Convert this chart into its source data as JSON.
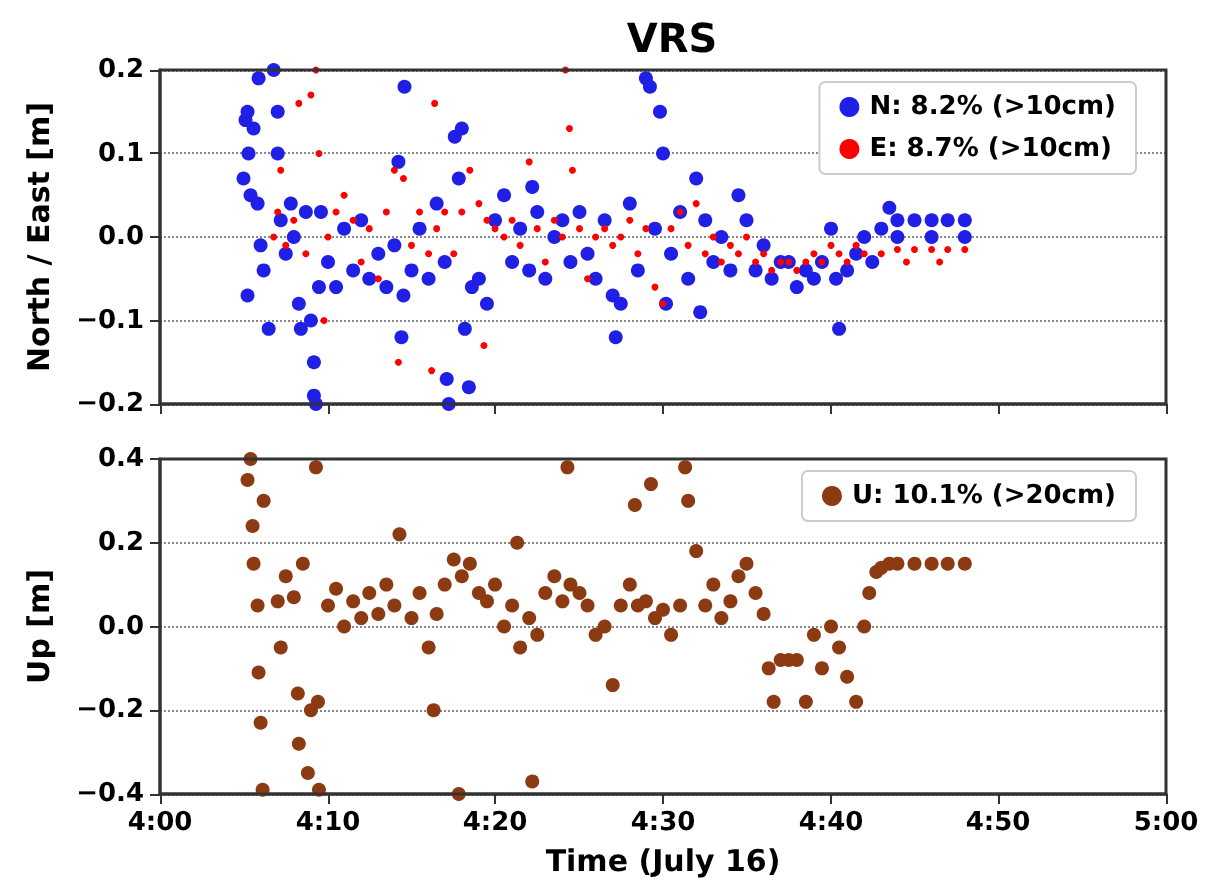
{
  "chart_data": [
    {
      "type": "scatter",
      "title": "VRS",
      "ylabel": "North / East [m]",
      "xlim": [
        4,
        5
      ],
      "xticks": [
        {
          "value": 4,
          "label": null
        },
        {
          "value": 4.167,
          "label": null
        },
        {
          "value": 4.333,
          "label": null
        },
        {
          "value": 4.5,
          "label": null
        },
        {
          "value": 4.667,
          "label": null
        },
        {
          "value": 4.833,
          "label": null
        },
        {
          "value": 5,
          "label": null
        }
      ],
      "ylim": [
        -0.2,
        0.2
      ],
      "yticks": [
        {
          "value": -0.2,
          "label": "−0.2"
        },
        {
          "value": -0.1,
          "label": "−0.1"
        },
        {
          "value": 0,
          "label": "0.0"
        },
        0.1,
        0.2
      ],
      "tick_labels": "y",
      "grid": "y",
      "legend": "top right",
      "marker": "circle",
      "series": [
        {
          "name": "N: 8.2% (>10cm)",
          "color": "#1f1fe6",
          "x": [
            4.083,
            4.085,
            4.087,
            4.088,
            4.09,
            4.087,
            4.093,
            4.097,
            4.098,
            4.1,
            4.103,
            4.108,
            4.113,
            4.117,
            4.117,
            4.12,
            4.125,
            4.13,
            4.133,
            4.138,
            4.14,
            4.145,
            4.15,
            4.153,
            4.153,
            4.155,
            4.158,
            4.16,
            4.167,
            4.175,
            4.183,
            4.192,
            4.2,
            4.208,
            4.217,
            4.225,
            4.233,
            4.237,
            4.24,
            4.242,
            4.243,
            4.25,
            4.258,
            4.267,
            4.275,
            4.283,
            4.285,
            4.287,
            4.293,
            4.297,
            4.3,
            4.303,
            4.307,
            4.31,
            4.317,
            4.325,
            4.333,
            4.342,
            4.35,
            4.358,
            4.367,
            4.37,
            4.375,
            4.383,
            4.392,
            4.4,
            4.408,
            4.417,
            4.425,
            4.433,
            4.442,
            4.45,
            4.453,
            4.458,
            4.467,
            4.475,
            4.483,
            4.487,
            4.492,
            4.497,
            4.5,
            4.503,
            4.508,
            4.517,
            4.525,
            4.533,
            4.537,
            4.542,
            4.55,
            4.558,
            4.567,
            4.575,
            4.583,
            4.592,
            4.6,
            4.608,
            4.617,
            4.625,
            4.633,
            4.642,
            4.65,
            4.658,
            4.667,
            4.672,
            4.675,
            4.683,
            4.692,
            4.7,
            4.708,
            4.717,
            4.725,
            4.733,
            4.75,
            4.767,
            4.783,
            4.8,
            4.733,
            4.767,
            4.8
          ],
          "values": [
            0.07,
            0.14,
            0.15,
            0.1,
            0.05,
            -0.07,
            0.13,
            0.04,
            0.19,
            -0.01,
            -0.04,
            -0.11,
            0.2,
            0.15,
            0.1,
            0.02,
            -0.02,
            0.04,
            0,
            -0.08,
            -0.11,
            0.03,
            -0.1,
            -0.15,
            -0.19,
            -0.2,
            -0.06,
            0.03,
            -0.03,
            -0.06,
            0.01,
            -0.04,
            0.02,
            -0.05,
            -0.02,
            -0.06,
            -0.01,
            0.09,
            -0.12,
            -0.07,
            0.18,
            -0.04,
            0.01,
            -0.05,
            0.04,
            -0.03,
            -0.17,
            -0.2,
            0.12,
            0.07,
            0.13,
            -0.11,
            -0.18,
            -0.06,
            -0.05,
            -0.08,
            0.02,
            0.05,
            -0.03,
            0.01,
            -0.04,
            0.06,
            0.03,
            -0.05,
            0,
            0.02,
            -0.03,
            0.03,
            -0.02,
            -0.05,
            0.02,
            -0.07,
            -0.12,
            -0.08,
            0.04,
            -0.04,
            0.19,
            0.18,
            0.01,
            0.15,
            0.1,
            -0.08,
            -0.02,
            0.03,
            -0.05,
            0.07,
            -0.09,
            0.02,
            -0.03,
            0,
            -0.04,
            0.05,
            0.02,
            -0.04,
            -0.01,
            -0.05,
            -0.03,
            -0.03,
            -0.06,
            -0.04,
            -0.05,
            -0.03,
            0.01,
            -0.05,
            -0.11,
            -0.04,
            -0.02,
            0,
            -0.03,
            0.01,
            0.035,
            0.02,
            0.02,
            0.02,
            0.02,
            0,
            0,
            0,
            0.02
          ]
        },
        {
          "name": "E: 8.7% (>10cm)",
          "color": "#ff0000",
          "x": [
            4.113,
            4.117,
            4.12,
            4.125,
            4.133,
            4.138,
            4.145,
            4.15,
            4.155,
            4.158,
            4.163,
            4.167,
            4.175,
            4.183,
            4.192,
            4.2,
            4.208,
            4.217,
            4.225,
            4.233,
            4.237,
            4.242,
            4.25,
            4.258,
            4.267,
            4.27,
            4.273,
            4.275,
            4.283,
            4.292,
            4.3,
            4.308,
            4.317,
            4.322,
            4.325,
            4.333,
            4.342,
            4.35,
            4.358,
            4.367,
            4.375,
            4.383,
            4.392,
            4.4,
            4.403,
            4.407,
            4.41,
            4.417,
            4.425,
            4.433,
            4.442,
            4.45,
            4.458,
            4.467,
            4.475,
            4.483,
            4.492,
            4.5,
            4.508,
            4.517,
            4.525,
            4.533,
            4.542,
            4.55,
            4.558,
            4.567,
            4.575,
            4.583,
            4.592,
            4.6,
            4.608,
            4.617,
            4.625,
            4.633,
            4.642,
            4.65,
            4.658,
            4.667,
            4.675,
            4.683,
            4.692,
            4.7,
            4.717,
            4.733,
            4.75,
            4.767,
            4.783,
            4.742,
            4.775,
            4.8
          ],
          "values": [
            0,
            0.03,
            0.08,
            -0.01,
            0.02,
            0.16,
            -0.02,
            0.17,
            0.2,
            0.1,
            -0.1,
            0,
            0.03,
            0.05,
            0.02,
            -0.03,
            0.01,
            -0.05,
            0.03,
            0.08,
            -0.15,
            0.07,
            -0.01,
            0.03,
            -0.02,
            -0.16,
            0.16,
            0.01,
            0.03,
            -0.02,
            0.03,
            0.08,
            0.04,
            -0.13,
            0.02,
            0.01,
            0,
            0.02,
            -0.01,
            0.09,
            0.01,
            -0.03,
            0.02,
            0,
            0.2,
            0.13,
            0.08,
            0.01,
            -0.05,
            0,
            0.01,
            -0.01,
            0,
            0.02,
            -0.02,
            0.01,
            -0.06,
            -0.08,
            0.01,
            0.03,
            -0.01,
            0.04,
            -0.02,
            0,
            -0.03,
            -0.01,
            -0.02,
            0,
            -0.03,
            -0.02,
            -0.04,
            -0.03,
            -0.03,
            -0.04,
            -0.03,
            -0.02,
            -0.03,
            -0.01,
            -0.02,
            -0.03,
            -0.01,
            -0.02,
            -0.02,
            -0.015,
            -0.015,
            -0.015,
            -0.015,
            -0.03,
            -0.03,
            -0.015
          ]
        }
      ]
    },
    {
      "type": "scatter",
      "xlabel": "Time (July 16)",
      "ylabel": "Up [m]",
      "xlim": [
        4,
        5
      ],
      "xticks": [
        {
          "value": 4,
          "label": "4:00"
        },
        {
          "value": 4.167,
          "label": "4:10"
        },
        {
          "value": 4.333,
          "label": "4:20"
        },
        {
          "value": 4.5,
          "label": "4:30"
        },
        {
          "value": 4.667,
          "label": "4:40"
        },
        {
          "value": 4.833,
          "label": "4:50"
        },
        {
          "value": 5,
          "label": "5:00"
        }
      ],
      "ylim": [
        -0.4,
        0.4
      ],
      "yticks": [
        {
          "value": -0.4,
          "label": "−0.4"
        },
        {
          "value": -0.2,
          "label": "−0.2"
        },
        {
          "value": 0,
          "label": "0.0"
        },
        0.2,
        0.4
      ],
      "grid": "y",
      "legend": "top right",
      "marker": "circle",
      "series": [
        {
          "name": "U: 10.1% (>20cm)",
          "color": "#8b3a12",
          "x": [
            4.087,
            4.09,
            4.092,
            4.093,
            4.097,
            4.098,
            4.1,
            4.102,
            4.103,
            4.117,
            4.12,
            4.125,
            4.133,
            4.137,
            4.138,
            4.142,
            4.147,
            4.15,
            4.155,
            4.157,
            4.158,
            4.167,
            4.175,
            4.183,
            4.192,
            4.2,
            4.208,
            4.217,
            4.225,
            4.233,
            4.238,
            4.25,
            4.258,
            4.267,
            4.272,
            4.275,
            4.283,
            4.292,
            4.297,
            4.3,
            4.308,
            4.317,
            4.325,
            4.333,
            4.342,
            4.35,
            4.355,
            4.358,
            4.367,
            4.37,
            4.375,
            4.383,
            4.392,
            4.4,
            4.405,
            4.408,
            4.417,
            4.425,
            4.433,
            4.442,
            4.45,
            4.458,
            4.467,
            4.472,
            4.475,
            4.483,
            4.488,
            4.492,
            4.5,
            4.508,
            4.517,
            4.522,
            4.525,
            4.533,
            4.542,
            4.55,
            4.558,
            4.567,
            4.575,
            4.583,
            4.592,
            4.6,
            4.605,
            4.61,
            4.617,
            4.625,
            4.633,
            4.642,
            4.65,
            4.658,
            4.667,
            4.675,
            4.683,
            4.692,
            4.7,
            4.705,
            4.712,
            4.717,
            4.725,
            4.733,
            4.75,
            4.767,
            4.783,
            4.8
          ],
          "values": [
            0.35,
            0.4,
            0.24,
            0.15,
            0.05,
            -0.11,
            -0.23,
            -0.39,
            0.3,
            0.06,
            -0.05,
            0.12,
            0.07,
            -0.16,
            -0.28,
            0.15,
            -0.35,
            -0.2,
            0.38,
            -0.18,
            -0.39,
            0.05,
            0.09,
            0,
            0.06,
            0.02,
            0.08,
            0.03,
            0.1,
            0.05,
            0.22,
            0.02,
            0.08,
            -0.05,
            -0.2,
            0.03,
            0.1,
            0.16,
            -0.4,
            0.12,
            0.15,
            0.08,
            0.06,
            0.1,
            0,
            0.05,
            0.2,
            -0.05,
            0.02,
            -0.37,
            -0.02,
            0.08,
            0.12,
            0.06,
            0.38,
            0.1,
            0.08,
            0.05,
            -0.02,
            0,
            -0.14,
            0.05,
            0.1,
            0.29,
            0.05,
            0.06,
            0.34,
            0.02,
            0.04,
            -0.02,
            0.05,
            0.38,
            0.3,
            0.18,
            0.05,
            0.1,
            0.02,
            0.06,
            0.12,
            0.15,
            0.08,
            0.03,
            -0.1,
            -0.18,
            -0.08,
            -0.08,
            -0.08,
            -0.18,
            -0.02,
            -0.1,
            0,
            -0.05,
            -0.12,
            -0.18,
            0,
            0.08,
            0.13,
            0.14,
            0.15,
            0.15,
            0.15,
            0.15,
            0.15,
            0.15
          ]
        }
      ]
    }
  ]
}
